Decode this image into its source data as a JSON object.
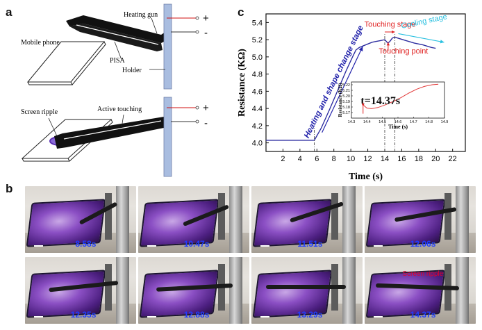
{
  "panel_a": {
    "letter": "a",
    "labels": {
      "heating_gun": "Heating gun",
      "mobile_phone": "Mobile phone",
      "pisa": "PISA",
      "holder": "Holder",
      "screen_ripple": "Screen ripple",
      "active_touching": "Active touching",
      "plus": "+",
      "minus": "-"
    }
  },
  "panel_b": {
    "letter": "b",
    "frames": [
      {
        "time": "8.58s"
      },
      {
        "time": "10.47s"
      },
      {
        "time": "11.51s"
      },
      {
        "time": "12.06s"
      },
      {
        "time": "12.35s"
      },
      {
        "time": "12.88s"
      },
      {
        "time": "13.29s"
      },
      {
        "time": "14.37s",
        "note": "Screen ripple"
      }
    ]
  },
  "panel_c": {
    "letter": "c",
    "annotations": {
      "heating": "Heating and shape change stage",
      "touching_stage": "Touching stage",
      "cooling_stage": "Cooling stage",
      "touching_point": "Touching point",
      "inset_t": "t=14.37s"
    },
    "colors": {
      "main_curve": "#2e2ea0",
      "inset_curve": "#e23b3b",
      "touch": "#e02020",
      "cool": "#28c0e0",
      "heat": "#2222aa"
    }
  },
  "chart_data": [
    {
      "type": "line",
      "xlabel": "Time (s)",
      "ylabel": "Resistance (KΩ)",
      "xlim": [
        0,
        23.5
      ],
      "ylim": [
        3.9,
        5.5
      ],
      "xticks": [
        2,
        4,
        6,
        8,
        10,
        12,
        14,
        16,
        18,
        20,
        22
      ],
      "yticks": [
        4.0,
        4.2,
        4.4,
        4.6,
        4.8,
        5.0,
        5.2,
        5.4
      ],
      "series": [
        {
          "x": [
            0,
            5.7,
            6.5,
            7.5,
            8.5,
            9.5,
            10.2,
            10.6,
            11.0,
            11.5,
            12.0,
            12.5,
            13.0,
            13.5,
            14.0,
            14.37,
            14.6,
            14.9,
            15.2,
            15.5,
            16.5,
            17.5,
            18.5,
            19.5,
            20.0
          ],
          "y": [
            4.03,
            4.03,
            4.17,
            4.39,
            4.62,
            4.85,
            5.0,
            5.08,
            5.11,
            5.13,
            5.15,
            5.17,
            5.18,
            5.19,
            5.2,
            5.16,
            5.18,
            5.22,
            5.23,
            5.22,
            5.19,
            5.16,
            5.14,
            5.11,
            5.1
          ]
        }
      ]
    },
    {
      "type": "line",
      "xlabel": "Time (s)",
      "ylabel": "Resistance (KΩ)",
      "xlim": [
        14.3,
        14.9
      ],
      "ylim": [
        5.16,
        5.225
      ],
      "xticks": [
        14.3,
        14.4,
        14.5,
        14.6,
        14.7,
        14.8,
        14.9
      ],
      "yticks": [
        5.17,
        5.18,
        5.19,
        5.2,
        5.21,
        5.22
      ],
      "xtick_labels": [
        "14.3",
        "14.4",
        "14.5",
        "14.6",
        "14.7",
        "14.8",
        "14.9"
      ],
      "ytick_labels": [
        "5.17",
        "5.18",
        "5.19",
        "5.20",
        "5.21",
        "5.22"
      ],
      "series": [
        {
          "x": [
            14.37,
            14.4,
            14.43,
            14.47,
            14.52,
            14.57,
            14.62,
            14.67,
            14.72,
            14.77,
            14.82,
            14.86
          ],
          "y": [
            5.185,
            5.178,
            5.177,
            5.179,
            5.184,
            5.19,
            5.197,
            5.205,
            5.212,
            5.217,
            5.22,
            5.221
          ]
        }
      ]
    }
  ]
}
